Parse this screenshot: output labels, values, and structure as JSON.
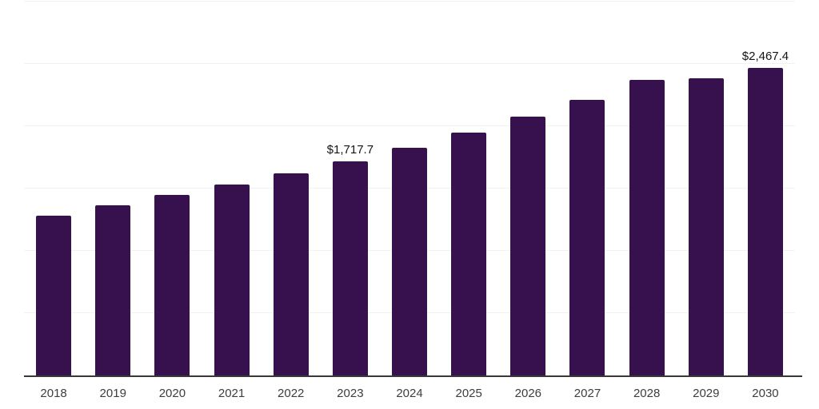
{
  "chart_data": {
    "type": "bar",
    "title": "",
    "xlabel": "",
    "ylabel": "",
    "categories": [
      "2018",
      "2019",
      "2020",
      "2021",
      "2022",
      "2023",
      "2024",
      "2025",
      "2026",
      "2027",
      "2028",
      "2029",
      "2030"
    ],
    "values": [
      1285,
      1365,
      1450,
      1530,
      1620,
      1717.7,
      1825,
      1950,
      2080,
      2215,
      2370,
      2385,
      2467.4
    ],
    "data_labels": [
      "",
      "",
      "",
      "",
      "",
      "$1,717.7",
      "",
      "",
      "",
      "",
      "",
      "",
      "$2,467.4"
    ],
    "value_prefix": "$",
    "ylim": [
      0,
      3000
    ],
    "gridline_step": 500,
    "grid": "horizontal-only",
    "y_tick_labels_visible": false,
    "legend_position": "none",
    "colors": {
      "bar": "#36114d",
      "gridline": "#f2f2f2",
      "axis_line": "#383838",
      "tick_label": "#3d3d3d",
      "data_label": "#141414",
      "background": "#ffffff"
    }
  }
}
